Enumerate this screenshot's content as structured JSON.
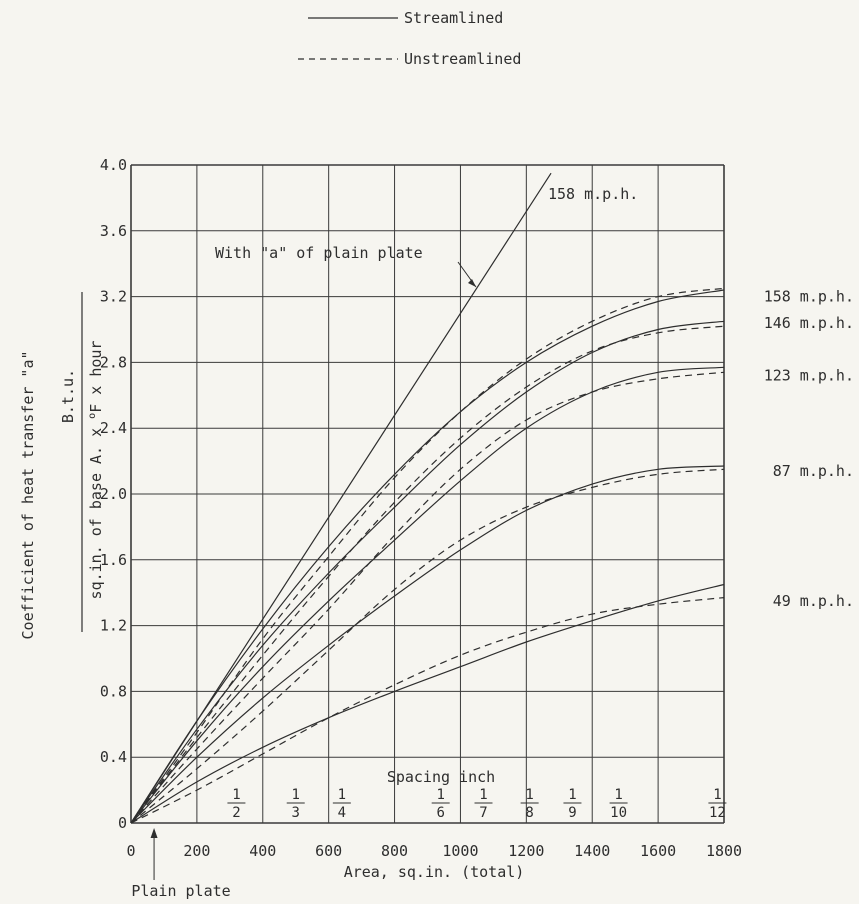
{
  "chart_data": {
    "type": "line",
    "xlabel": "Area, sq.in. (total)",
    "ylabel_top": "Coefficient of heat transfer \"a\"",
    "ylabel_numer": "B.t.u.",
    "ylabel_denom_prefix": "sq.in. of base A. x ",
    "ylabel_denom_sup": "o",
    "ylabel_denom_suffix": "F x hour",
    "xlim": [
      0,
      1800
    ],
    "ylim": [
      0,
      4.0
    ],
    "x_ticks": [
      "0",
      "200",
      "400",
      "600",
      "800",
      "1000",
      "1200",
      "1400",
      "1600",
      "1800"
    ],
    "y_ticks": [
      "0",
      "0.4",
      "0.8",
      "1.2",
      "1.6",
      "2.0",
      "2.4",
      "2.8",
      "3.2",
      "3.6",
      "4.0"
    ],
    "grid": true,
    "legend": [
      {
        "label": "Streamlined",
        "style": "solid"
      },
      {
        "label": "Unstreamlined",
        "style": "dashed"
      }
    ],
    "plain_plate_line": {
      "label": "With \"a\" of plain plate",
      "speed_label": "158 m.p.h.",
      "x": [
        0,
        1275
      ],
      "y": [
        0,
        3.95
      ]
    },
    "spacing": {
      "title": "Spacing inch",
      "marks": [
        {
          "num": "1",
          "den": "2",
          "area": 320
        },
        {
          "num": "1",
          "den": "3",
          "area": 500
        },
        {
          "num": "1",
          "den": "4",
          "area": 640
        },
        {
          "num": "1",
          "den": "6",
          "area": 940
        },
        {
          "num": "1",
          "den": "7",
          "area": 1070
        },
        {
          "num": "1",
          "den": "8",
          "area": 1210
        },
        {
          "num": "1",
          "den": "9",
          "area": 1340
        },
        {
          "num": "1",
          "den": "10",
          "area": 1480
        },
        {
          "num": "1",
          "den": "12",
          "area": 1780
        }
      ]
    },
    "plain_plate_annotation": "Plain plate",
    "plain_plate_x": 70,
    "series": [
      {
        "name": "158 m.p.h.",
        "style": "solid",
        "x": [
          0,
          200,
          400,
          600,
          800,
          1000,
          1200,
          1400,
          1600,
          1800
        ],
        "y": [
          0,
          0.62,
          1.18,
          1.68,
          2.12,
          2.5,
          2.8,
          3.02,
          3.17,
          3.24
        ]
      },
      {
        "name": "158 m.p.h.",
        "style": "dashed",
        "x": [
          0,
          200,
          400,
          600,
          800,
          1000,
          1200,
          1400,
          1600,
          1800
        ],
        "y": [
          0,
          0.55,
          1.12,
          1.62,
          2.1,
          2.5,
          2.82,
          3.05,
          3.2,
          3.25
        ]
      },
      {
        "name": "146 m.p.h.",
        "style": "solid",
        "x": [
          0,
          200,
          400,
          600,
          800,
          1000,
          1200,
          1400,
          1600,
          1800
        ],
        "y": [
          0,
          0.57,
          1.08,
          1.52,
          1.92,
          2.3,
          2.62,
          2.86,
          3.0,
          3.05
        ]
      },
      {
        "name": "146 m.p.h.",
        "style": "dashed",
        "x": [
          0,
          200,
          400,
          600,
          800,
          1000,
          1200,
          1400,
          1600,
          1800
        ],
        "y": [
          0,
          0.52,
          1.02,
          1.5,
          1.95,
          2.34,
          2.65,
          2.87,
          2.98,
          3.02
        ]
      },
      {
        "name": "123 m.p.h.",
        "style": "solid",
        "x": [
          0,
          200,
          400,
          600,
          800,
          1000,
          1200,
          1400,
          1600,
          1800
        ],
        "y": [
          0,
          0.5,
          0.95,
          1.35,
          1.72,
          2.08,
          2.4,
          2.62,
          2.74,
          2.77
        ]
      },
      {
        "name": "123 m.p.h.",
        "style": "dashed",
        "x": [
          0,
          200,
          400,
          600,
          800,
          1000,
          1200,
          1400,
          1600,
          1800
        ],
        "y": [
          0,
          0.45,
          0.88,
          1.3,
          1.75,
          2.15,
          2.45,
          2.62,
          2.7,
          2.74
        ]
      },
      {
        "name": "87 m.p.h.",
        "style": "solid",
        "x": [
          0,
          200,
          400,
          600,
          800,
          1000,
          1200,
          1400,
          1600,
          1800
        ],
        "y": [
          0,
          0.4,
          0.76,
          1.08,
          1.38,
          1.66,
          1.9,
          2.06,
          2.15,
          2.17
        ]
      },
      {
        "name": "87 m.p.h.",
        "style": "dashed",
        "x": [
          0,
          200,
          400,
          600,
          800,
          1000,
          1200,
          1400,
          1600,
          1800
        ],
        "y": [
          0,
          0.33,
          0.68,
          1.05,
          1.42,
          1.72,
          1.92,
          2.04,
          2.12,
          2.15
        ]
      },
      {
        "name": "49 m.p.h.",
        "style": "solid",
        "x": [
          0,
          200,
          400,
          600,
          800,
          1000,
          1200,
          1400,
          1600,
          1800
        ],
        "y": [
          0,
          0.25,
          0.46,
          0.64,
          0.8,
          0.95,
          1.1,
          1.23,
          1.35,
          1.45
        ]
      },
      {
        "name": "49 m.p.h.",
        "style": "dashed",
        "x": [
          0,
          200,
          400,
          600,
          800,
          1000,
          1200,
          1400,
          1600,
          1800
        ],
        "y": [
          0,
          0.2,
          0.42,
          0.64,
          0.84,
          1.02,
          1.16,
          1.27,
          1.33,
          1.37
        ]
      }
    ],
    "curve_labels": [
      {
        "text": "158 m.p.h.",
        "y": 3.2
      },
      {
        "text": "146 m.p.h.",
        "y": 3.04
      },
      {
        "text": "123 m.p.h.",
        "y": 2.72
      },
      {
        "text": "87 m.p.h.",
        "y": 2.14
      },
      {
        "text": "49 m.p.h.",
        "y": 1.35
      }
    ],
    "colors": {
      "line": "#2e2e2e",
      "grid": "#3a3a3a",
      "background": "#f6f5f0"
    }
  }
}
